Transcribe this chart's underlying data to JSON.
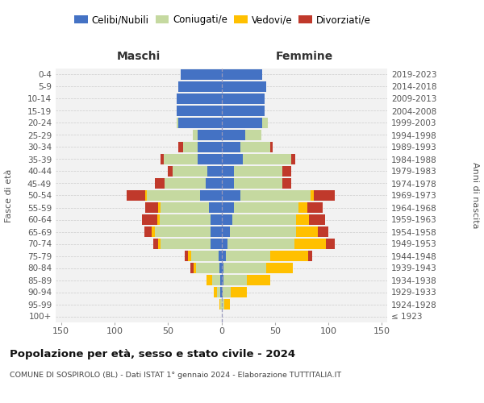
{
  "age_groups": [
    "100+",
    "95-99",
    "90-94",
    "85-89",
    "80-84",
    "75-79",
    "70-74",
    "65-69",
    "60-64",
    "55-59",
    "50-54",
    "45-49",
    "40-44",
    "35-39",
    "30-34",
    "25-29",
    "20-24",
    "15-19",
    "10-14",
    "5-9",
    "0-4"
  ],
  "birth_years": [
    "≤ 1923",
    "1924-1928",
    "1929-1933",
    "1934-1938",
    "1939-1943",
    "1944-1948",
    "1949-1953",
    "1954-1958",
    "1959-1963",
    "1964-1968",
    "1969-1973",
    "1974-1978",
    "1979-1983",
    "1984-1988",
    "1989-1993",
    "1994-1998",
    "1999-2003",
    "2004-2008",
    "2009-2013",
    "2014-2018",
    "2019-2023"
  ],
  "maschi": {
    "celibi": [
      0,
      0,
      1,
      1,
      2,
      3,
      10,
      10,
      10,
      12,
      20,
      15,
      13,
      22,
      22,
      22,
      40,
      42,
      42,
      40,
      38
    ],
    "coniugati": [
      0,
      1,
      3,
      8,
      22,
      25,
      47,
      52,
      48,
      45,
      50,
      38,
      33,
      32,
      14,
      5,
      2,
      0,
      0,
      0,
      0
    ],
    "vedovi": [
      0,
      1,
      3,
      5,
      2,
      3,
      2,
      3,
      2,
      2,
      1,
      0,
      0,
      0,
      0,
      0,
      0,
      0,
      0,
      0,
      0
    ],
    "divorziati": [
      0,
      0,
      0,
      0,
      3,
      3,
      5,
      7,
      14,
      12,
      18,
      9,
      4,
      3,
      4,
      0,
      0,
      0,
      0,
      0,
      0
    ]
  },
  "femmine": {
    "nubili": [
      0,
      0,
      1,
      2,
      2,
      4,
      6,
      8,
      10,
      12,
      18,
      12,
      12,
      20,
      18,
      22,
      38,
      40,
      40,
      42,
      38
    ],
    "coniugate": [
      0,
      3,
      8,
      22,
      40,
      42,
      62,
      62,
      60,
      60,
      65,
      45,
      45,
      45,
      28,
      15,
      5,
      0,
      0,
      0,
      0
    ],
    "vedove": [
      0,
      5,
      15,
      22,
      25,
      35,
      30,
      20,
      12,
      8,
      3,
      0,
      0,
      0,
      0,
      0,
      0,
      0,
      0,
      0,
      0
    ],
    "divorziate": [
      0,
      0,
      0,
      0,
      0,
      4,
      8,
      10,
      15,
      15,
      20,
      8,
      8,
      4,
      2,
      0,
      0,
      0,
      0,
      0,
      0
    ]
  },
  "colors": {
    "celibi": "#4472c4",
    "coniugati": "#c5d9a0",
    "vedovi": "#ffc000",
    "divorziati": "#c0392b"
  },
  "xlim": 155,
  "title": "Popolazione per età, sesso e stato civile - 2024",
  "subtitle": "COMUNE DI SOSPIROLO (BL) - Dati ISTAT 1° gennaio 2024 - Elaborazione TUTTITALIA.IT",
  "xlabel_left": "Maschi",
  "xlabel_right": "Femmine",
  "ylabel_left": "Fasce di età",
  "ylabel_right": "Anni di nascita"
}
